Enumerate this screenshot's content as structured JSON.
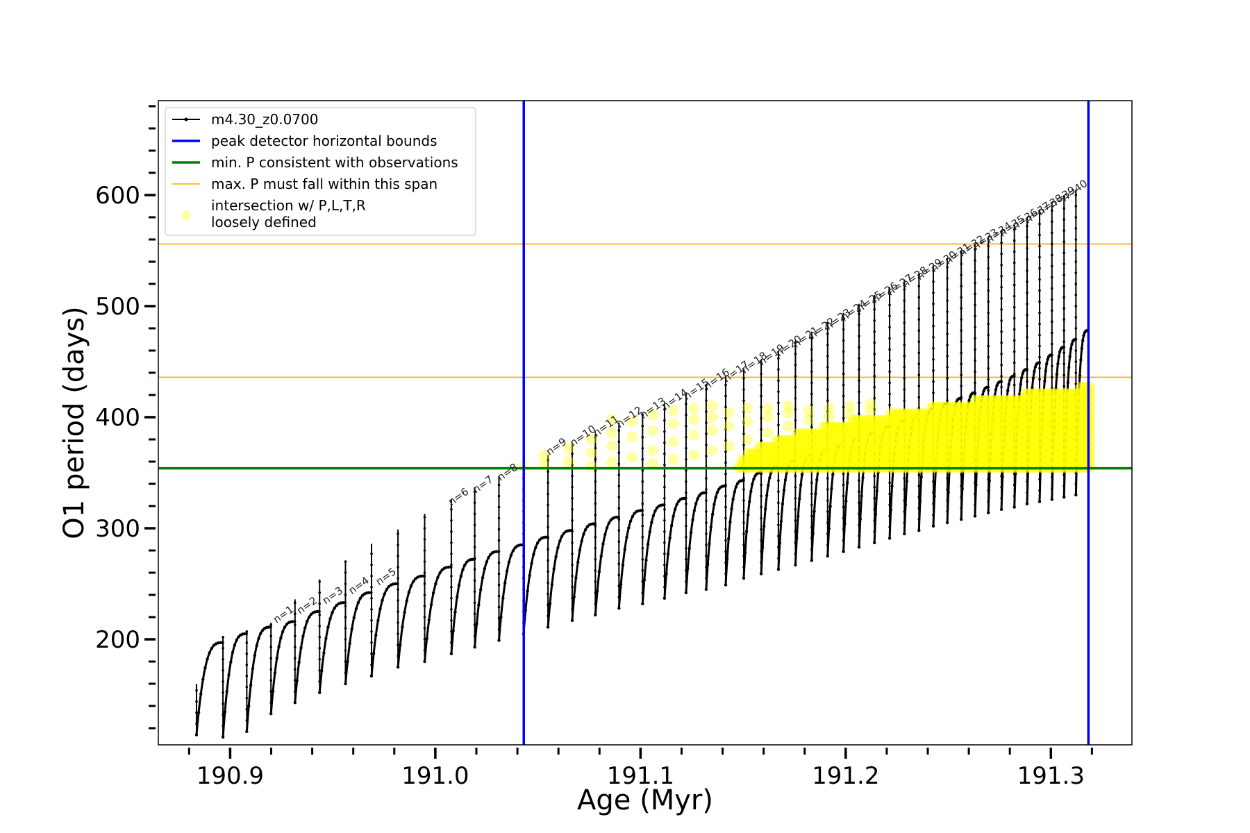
{
  "chart_data": {
    "type": "line",
    "title": "",
    "xlabel": "Age (Myr)",
    "ylabel": "O1 period (days)",
    "xlim": [
      190.865,
      191.3395
    ],
    "ylim": [
      105,
      685
    ],
    "xticks": [
      190.9,
      191.0,
      191.1,
      191.2,
      191.3
    ],
    "xtick_labels": [
      "190.9",
      "191.0",
      "191.1",
      "191.2",
      "191.3"
    ],
    "yticks": [
      200,
      300,
      400,
      500,
      600
    ],
    "ytick_labels": [
      "200",
      "300",
      "400",
      "500",
      "600"
    ],
    "grid": false,
    "legend_position": "top-left",
    "legend": [
      {
        "label": "m4.30_z0.0700",
        "style": "line-marker",
        "color": "#000000"
      },
      {
        "label": "peak detector horizontal bounds",
        "style": "line",
        "color": "#0000ff"
      },
      {
        "label": "min. P consistent with observations",
        "style": "line",
        "color": "#008000"
      },
      {
        "label": "max. P must fall within this span",
        "style": "thin-line",
        "color": "#ffa500"
      },
      {
        "label": "intersection w/ P,L,T,R",
        "label2": "loosely defined",
        "style": "marker",
        "color": "#ffff99"
      }
    ],
    "series_track": {
      "name": "m4.30_z0.0700",
      "color": "#000000",
      "pulses": [
        {
          "x": 190.8836,
          "min": 114,
          "top": 197,
          "spike": 160
        },
        {
          "x": 190.8965,
          "min": 112,
          "top": 205,
          "spike": 202
        },
        {
          "x": 190.9081,
          "min": 117,
          "top": 211,
          "spike": 208
        },
        {
          "x": 190.9199,
          "min": 133,
          "top": 216,
          "spike": 215
        },
        {
          "x": 190.9316,
          "min": 143,
          "top": 225,
          "spike": 236
        },
        {
          "x": 190.9436,
          "min": 152,
          "top": 233,
          "spike": 254
        },
        {
          "x": 190.9562,
          "min": 160,
          "top": 242,
          "spike": 270
        },
        {
          "x": 190.9689,
          "min": 167,
          "top": 250,
          "spike": 286
        },
        {
          "x": 190.9818,
          "min": 175,
          "top": 257,
          "spike": 299
        },
        {
          "x": 190.9948,
          "min": 180,
          "top": 265,
          "spike": 313
        },
        {
          "x": 191.0078,
          "min": 187,
          "top": 272,
          "spike": 326
        },
        {
          "x": 191.0192,
          "min": 193,
          "top": 279,
          "spike": 337
        },
        {
          "x": 191.031,
          "min": 199,
          "top": 285,
          "spike": 347
        },
        {
          "x": 191.043,
          "min": 205,
          "top": 292,
          "spike": 357
        },
        {
          "x": 191.0549,
          "min": 211,
          "top": 298,
          "spike": 366
        },
        {
          "x": 191.0667,
          "min": 217,
          "top": 304,
          "spike": 376
        },
        {
          "x": 191.078,
          "min": 222,
          "top": 310,
          "spike": 385
        },
        {
          "x": 191.0895,
          "min": 228,
          "top": 316,
          "spike": 395
        },
        {
          "x": 191.101,
          "min": 232,
          "top": 321,
          "spike": 404
        },
        {
          "x": 191.1117,
          "min": 237,
          "top": 327,
          "spike": 412
        },
        {
          "x": 191.1222,
          "min": 242,
          "top": 332,
          "spike": 421
        },
        {
          "x": 191.132,
          "min": 245,
          "top": 338,
          "spike": 430
        },
        {
          "x": 191.1415,
          "min": 249,
          "top": 343,
          "spike": 437
        },
        {
          "x": 191.1503,
          "min": 255,
          "top": 350,
          "spike": 444
        },
        {
          "x": 191.1588,
          "min": 259,
          "top": 356,
          "spike": 452
        },
        {
          "x": 191.1672,
          "min": 263,
          "top": 361,
          "spike": 460
        },
        {
          "x": 191.1755,
          "min": 267,
          "top": 366,
          "spike": 469
        },
        {
          "x": 191.1834,
          "min": 271,
          "top": 371,
          "spike": 477
        },
        {
          "x": 191.1912,
          "min": 275,
          "top": 376,
          "spike": 485
        },
        {
          "x": 191.1989,
          "min": 279,
          "top": 382,
          "spike": 494
        },
        {
          "x": 191.2065,
          "min": 283,
          "top": 387,
          "spike": 502
        },
        {
          "x": 191.214,
          "min": 287,
          "top": 392,
          "spike": 510
        },
        {
          "x": 191.2214,
          "min": 291,
          "top": 397,
          "spike": 517
        },
        {
          "x": 191.2286,
          "min": 295,
          "top": 402,
          "spike": 524
        },
        {
          "x": 191.2357,
          "min": 298,
          "top": 407,
          "spike": 530
        },
        {
          "x": 191.2427,
          "min": 302,
          "top": 412,
          "spike": 537
        },
        {
          "x": 191.2495,
          "min": 305,
          "top": 417,
          "spike": 543
        },
        {
          "x": 191.2563,
          "min": 308,
          "top": 422,
          "spike": 550
        },
        {
          "x": 191.263,
          "min": 311,
          "top": 427,
          "spike": 556
        },
        {
          "x": 191.2695,
          "min": 314,
          "top": 432,
          "spike": 562
        },
        {
          "x": 191.2759,
          "min": 317,
          "top": 437,
          "spike": 568
        },
        {
          "x": 191.2822,
          "min": 319,
          "top": 443,
          "spike": 574
        },
        {
          "x": 191.2884,
          "min": 322,
          "top": 449,
          "spike": 580
        },
        {
          "x": 191.2945,
          "min": 324,
          "top": 456,
          "spike": 587
        },
        {
          "x": 191.3005,
          "min": 326,
          "top": 463,
          "spike": 594
        },
        {
          "x": 191.3064,
          "min": 328,
          "top": 470,
          "spike": 600
        },
        {
          "x": 191.3122,
          "min": 330,
          "top": 478,
          "spike": 605
        }
      ]
    },
    "vertical_lines": {
      "name": "peak detector horizontal bounds",
      "color": "#0000ff",
      "x": [
        191.0431,
        191.3183
      ]
    },
    "min_period_line": {
      "name": "min. P consistent with observations",
      "color": "#008000",
      "y": 354
    },
    "max_period_span": {
      "name": "max. P must fall within this span",
      "color": "#ffa500",
      "y": [
        436,
        556
      ]
    },
    "intersection": {
      "name": "intersection w/ P,L,T,R loosely defined",
      "color": "#ffff00",
      "scattered": [
        {
          "x": 191.043,
          "y": [
            356
          ]
        },
        {
          "x": 191.053,
          "y": [
            358,
            366
          ]
        },
        {
          "x": 191.065,
          "y": [
            360,
            372
          ]
        },
        {
          "x": 191.076,
          "y": [
            356,
            368,
            380
          ]
        },
        {
          "x": 191.086,
          "y": [
            360,
            374,
            386,
            398
          ]
        },
        {
          "x": 191.096,
          "y": [
            364,
            382,
            396
          ]
        },
        {
          "x": 191.106,
          "y": [
            358,
            370,
            388,
            402
          ]
        },
        {
          "x": 191.116,
          "y": [
            362,
            378,
            394,
            406
          ]
        },
        {
          "x": 191.126,
          "y": [
            366,
            384,
            398,
            408
          ]
        },
        {
          "x": 191.135,
          "y": [
            370,
            388,
            400,
            410
          ]
        },
        {
          "x": 191.143,
          "y": [
            374,
            392,
            404
          ]
        },
        {
          "x": 191.152,
          "y": [
            380,
            396,
            408
          ]
        },
        {
          "x": 191.162,
          "y": [
            386,
            400,
            408
          ]
        },
        {
          "x": 191.172,
          "y": [
            392,
            404,
            410
          ]
        },
        {
          "x": 191.182,
          "y": [
            398,
            406
          ]
        },
        {
          "x": 191.192,
          "y": [
            400,
            408
          ]
        },
        {
          "x": 191.202,
          "y": [
            402,
            410
          ]
        },
        {
          "x": 191.212,
          "y": [
            406,
            412
          ]
        }
      ],
      "dense_band": {
        "x_start": 191.148,
        "x_end": 191.319,
        "bottom": 355,
        "top_start": 356,
        "top_end": 428
      }
    },
    "n_labels": [
      {
        "text": "n=1",
        "x": 190.9222,
        "y": 213
      },
      {
        "text": "n=2",
        "x": 190.9337,
        "y": 221
      },
      {
        "text": "n=3",
        "x": 190.9462,
        "y": 230
      },
      {
        "text": "n=4",
        "x": 190.959,
        "y": 239
      },
      {
        "text": "n=5",
        "x": 190.9722,
        "y": 247
      },
      {
        "text": "n=6",
        "x": 191.0075,
        "y": 319
      },
      {
        "text": "n=7",
        "x": 191.0194,
        "y": 330
      },
      {
        "text": "n=8",
        "x": 191.0314,
        "y": 341
      },
      {
        "text": "n=9",
        "x": 191.0552,
        "y": 364
      },
      {
        "text": "n=10",
        "x": 191.0668,
        "y": 372
      },
      {
        "text": "n=11",
        "x": 191.0781,
        "y": 381
      },
      {
        "text": "n=12",
        "x": 191.0895,
        "y": 389
      },
      {
        "text": "n=13",
        "x": 191.101,
        "y": 397
      },
      {
        "text": "n=14",
        "x": 191.1117,
        "y": 405
      },
      {
        "text": "n=15",
        "x": 191.1222,
        "y": 414
      },
      {
        "text": "n=16",
        "x": 191.132,
        "y": 423
      },
      {
        "text": "n=17",
        "x": 191.1415,
        "y": 430
      },
      {
        "text": "n=18",
        "x": 191.1503,
        "y": 438
      },
      {
        "text": "n=19",
        "x": 191.1588,
        "y": 445
      },
      {
        "text": "n=20",
        "x": 191.1672,
        "y": 453
      },
      {
        "text": "n=21",
        "x": 191.1755,
        "y": 461
      },
      {
        "text": "n=22",
        "x": 191.1834,
        "y": 469
      },
      {
        "text": "n=23",
        "x": 191.1912,
        "y": 477
      },
      {
        "text": "n=24",
        "x": 191.1989,
        "y": 485
      },
      {
        "text": "n=25",
        "x": 191.2065,
        "y": 493
      },
      {
        "text": "n=26",
        "x": 191.214,
        "y": 501
      },
      {
        "text": "n=27",
        "x": 191.2214,
        "y": 508
      },
      {
        "text": "n=28",
        "x": 191.2286,
        "y": 515
      },
      {
        "text": "n=29",
        "x": 191.2357,
        "y": 522
      },
      {
        "text": "n=30",
        "x": 191.2427,
        "y": 529
      },
      {
        "text": "n=31",
        "x": 191.2495,
        "y": 536
      },
      {
        "text": "n=32",
        "x": 191.2563,
        "y": 543
      },
      {
        "text": "n=33",
        "x": 191.263,
        "y": 549
      },
      {
        "text": "n=34",
        "x": 191.2695,
        "y": 555
      },
      {
        "text": "n=35",
        "x": 191.2759,
        "y": 561
      },
      {
        "text": "n=36",
        "x": 191.2822,
        "y": 567
      },
      {
        "text": "n=37",
        "x": 191.2884,
        "y": 573
      },
      {
        "text": "n=38",
        "x": 191.2945,
        "y": 580
      },
      {
        "text": "n=39",
        "x": 191.3005,
        "y": 587
      },
      {
        "text": "n=40",
        "x": 191.3064,
        "y": 593
      }
    ]
  }
}
